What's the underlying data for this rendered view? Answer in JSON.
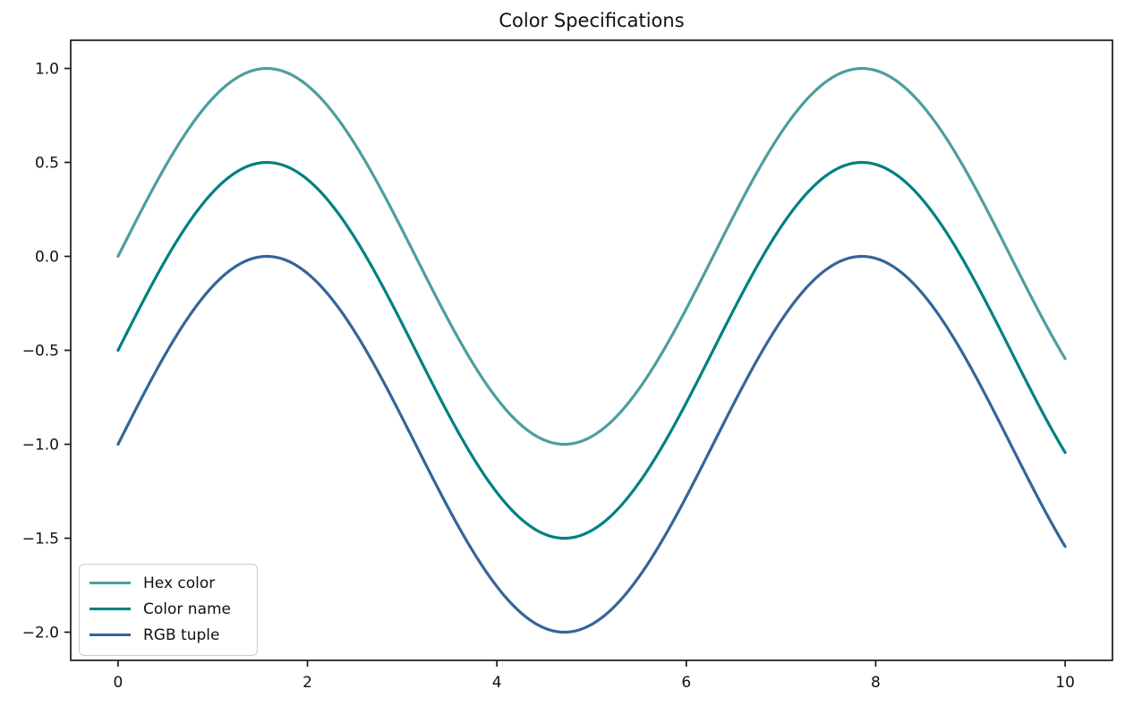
{
  "figure": {
    "title": "Color Specifications",
    "background_color": "#ffffff",
    "text_color": "#111111",
    "spine_color": "#1a1a1a",
    "legend_border_color": "#cccccc"
  },
  "chart_data": {
    "type": "line",
    "title": "Color Specifications",
    "xlabel": "",
    "ylabel": "",
    "grid": false,
    "legend_position": "lower left",
    "xlim": [
      -0.5,
      10.5
    ],
    "ylim": [
      -2.15,
      1.15
    ],
    "x_range": [
      0,
      10
    ],
    "x_ticks": [
      0,
      2,
      4,
      6,
      8,
      10
    ],
    "x_tick_labels": [
      "0",
      "2",
      "4",
      "6",
      "8",
      "10"
    ],
    "y_ticks": [
      1.0,
      0.5,
      0.0,
      -0.5,
      -1.0,
      -1.5,
      -2.0
    ],
    "y_tick_labels": [
      "1.0",
      "0.5",
      "0.0",
      "−0.5",
      "−1.0",
      "−1.5",
      "−2.0"
    ],
    "x_samples": [
      0,
      0.5,
      1,
      1.5,
      2,
      2.5,
      3,
      3.5,
      4,
      4.5,
      5,
      5.5,
      6,
      6.5,
      7,
      7.5,
      8,
      8.5,
      9,
      9.5,
      10
    ],
    "series": [
      {
        "name": "Hex color",
        "color": "#4C9E9E",
        "function": "sin(x)",
        "offset": 0,
        "values": [
          0.0,
          0.479,
          0.841,
          0.997,
          0.909,
          0.599,
          0.141,
          -0.351,
          -0.757,
          -0.978,
          -0.959,
          -0.706,
          -0.279,
          0.215,
          0.657,
          0.938,
          0.989,
          0.798,
          0.412,
          -0.075,
          -0.544
        ]
      },
      {
        "name": "Color name",
        "color": "#008080",
        "function": "sin(x) - 0.5",
        "offset": -0.5,
        "values": [
          -0.5,
          -0.021,
          0.341,
          0.497,
          0.409,
          0.099,
          -0.359,
          -0.851,
          -1.257,
          -1.478,
          -1.459,
          -1.206,
          -0.779,
          -0.285,
          0.157,
          0.438,
          0.489,
          0.298,
          -0.088,
          -0.575,
          -1.044
        ]
      },
      {
        "name": "RGB tuple",
        "color": "#336699",
        "function": "sin(x) - 1.0",
        "offset": -1.0,
        "values": [
          -1.0,
          -0.521,
          -0.159,
          -0.003,
          -0.091,
          -0.401,
          -0.859,
          -1.351,
          -1.757,
          -1.978,
          -1.959,
          -1.706,
          -1.279,
          -0.785,
          -0.343,
          -0.062,
          -0.011,
          -0.202,
          -0.588,
          -1.075,
          -1.544
        ]
      }
    ]
  }
}
